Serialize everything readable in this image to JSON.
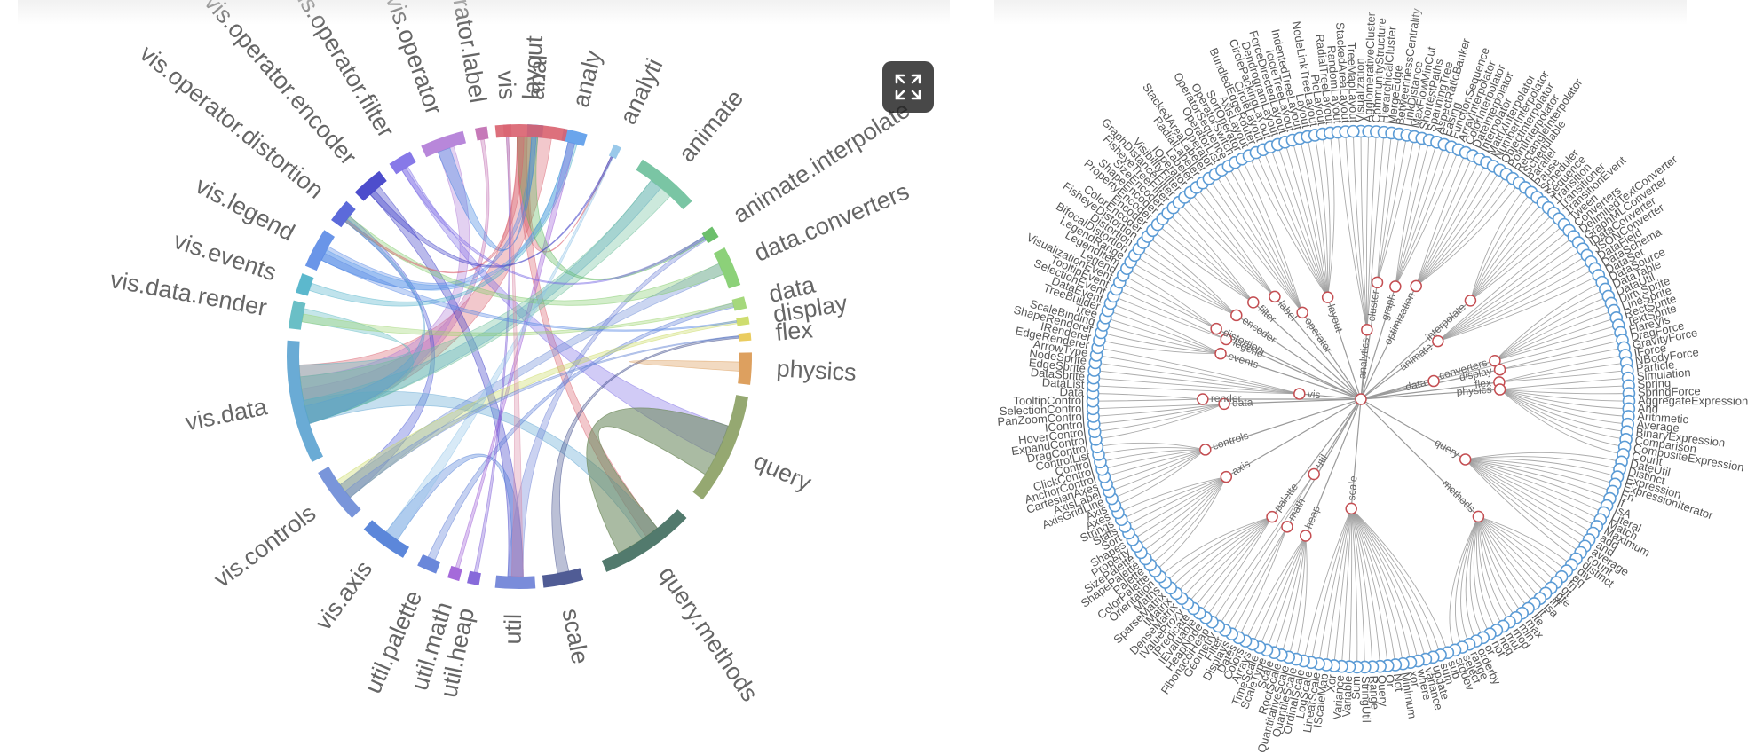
{
  "colors": {
    "label": "#666666",
    "tree_link": "#9a9a9a",
    "leaf_node": "#5b9bd5",
    "inner_node": "#c44e52",
    "button_bg": "#2b2b2b"
  },
  "expand_button": {
    "icon": "expand-icon"
  },
  "chord_diagram": {
    "groups": [
      {
        "label": "vis",
        "color": "#d98aa6"
      },
      {
        "label": "anal",
        "color": "#3b82e0"
      },
      {
        "label": "analy",
        "color": "#5a9bea"
      },
      {
        "label": "analyti",
        "color": "#8fc3e8"
      },
      {
        "label": "animate",
        "color": "#6cbf9a"
      },
      {
        "label": "animate.interpolate",
        "color": "#5cb85c"
      },
      {
        "label": "data.converters",
        "color": "#80cc6a"
      },
      {
        "label": "data",
        "color": "#9bd46e"
      },
      {
        "label": "display",
        "color": "#c9d95f"
      },
      {
        "label": "flex",
        "color": "#e8c64f"
      },
      {
        "label": "physics",
        "color": "#d9964e"
      },
      {
        "label": "query",
        "color": "#8a9e62"
      },
      {
        "label": "query.methods",
        "color": "#3f6b5d"
      },
      {
        "label": "scale",
        "color": "#3d4a8a"
      },
      {
        "label": "util",
        "color": "#6b7fd6"
      },
      {
        "label": "util.heap",
        "color": "#7a5ad6"
      },
      {
        "label": "util.math",
        "color": "#9b5ad6"
      },
      {
        "label": "util.palette",
        "color": "#5a7ad6"
      },
      {
        "label": "vis.axis",
        "color": "#4a7ad6"
      },
      {
        "label": "vis.controls",
        "color": "#6a8ad6"
      },
      {
        "label": "vis.data",
        "color": "#5aa2d0"
      },
      {
        "label": "vis.data.render",
        "color": "#5ab8c0"
      },
      {
        "label": "vis.events",
        "color": "#4ab0c8"
      },
      {
        "label": "vis.legend",
        "color": "#5a8ae6"
      },
      {
        "label": "vis.operator.distortion",
        "color": "#4a5ad6"
      },
      {
        "label": "vis.operator.encoder",
        "color": "#3a3ac6"
      },
      {
        "label": "vis.operator.filter",
        "color": "#7a6ae6"
      },
      {
        "label": "vis.operator",
        "color": "#b07ad6"
      },
      {
        "label": "vis.operator.label",
        "color": "#c06ab0"
      },
      {
        "label": "layout",
        "color": "#d9606e"
      }
    ]
  },
  "tree_diagram": {
    "leaves": [
      "Visualization",
      "AgglomerativeCluster",
      "CommunityStructure",
      "HierarchicalCluster",
      "MergeEdge",
      "BetweennessCentrality",
      "LinkDistance",
      "MaxFlowMinCut",
      "ShortestPaths",
      "SpanningTree",
      "AspectRatioBanker",
      "Easing",
      "FunctionSequence",
      "ArrayInterpolator",
      "ColorInterpolator",
      "DateInterpolator",
      "Interpolator",
      "MatrixInterpolator",
      "NumberInterpolator",
      "ObjectInterpolator",
      "PointInterpolator",
      "RectangleInterpolator",
      "ISchedulable",
      "Parallel",
      "Pause",
      "Scheduler",
      "Sequence",
      "Transition",
      "Transitioner",
      "TransitionEvent",
      "Tween",
      "Converters",
      "DelimitedTextConverter",
      "GraphMLConverter",
      "IDataConverter",
      "JSONConverter",
      "DataField",
      "DataSchema",
      "DataSet",
      "DataSource",
      "DataTable",
      "DataUtil",
      "DirtySprite",
      "LineSprite",
      "RectSprite",
      "TextSprite",
      "FlareVis",
      "DragForce",
      "GravityForce",
      "IForce",
      "NBodyForce",
      "Particle",
      "Simulation",
      "Spring",
      "SpringForce",
      "AggregateExpression",
      "And",
      "Arithmetic",
      "Average",
      "BinaryExpression",
      "Comparison",
      "CompositeExpression",
      "Count",
      "DateUtil",
      "Distinct",
      "Expression",
      "ExpressionIterator",
      "Fn",
      "If",
      "IsA",
      "Literal",
      "Match",
      "Maximum",
      "add",
      "and",
      "average",
      "count",
      "distinct",
      "div",
      "eq",
      "fn",
      "gt",
      "gte",
      "iff",
      "isa",
      "lt",
      "lte",
      "max",
      "min",
      "mod",
      "mul",
      "neq",
      "not",
      "or",
      "orderby",
      "range",
      "select",
      "stddev",
      "sub",
      "sum",
      "update",
      "variance",
      "where",
      "xor",
      "Minimum",
      "Not",
      "Or",
      "Query",
      "Range",
      "StringUtil",
      "Sum",
      "Variable",
      "Variance",
      "Xor",
      "IScaleMap",
      "LinearScale",
      "LogScale",
      "OrdinalScale",
      "QuantileScale",
      "QuantitativeScale",
      "RootScale",
      "Scale",
      "ScaleType",
      "TimeScale",
      "Arrays",
      "Colors",
      "Dates",
      "Displays",
      "Filter",
      "Geometry",
      "FibonacciHeap",
      "HeapNode",
      "IEvaluable",
      "IPredicate",
      "IValueProxy",
      "DenseMatrix",
      "IMatrix",
      "SparseMatrix",
      "Maths",
      "Orientation",
      "ColorPalette",
      "Palette",
      "ShapePalette",
      "SizePalette",
      "Property",
      "Shapes",
      "Sort",
      "Stats",
      "Strings",
      "Axes",
      "Axis",
      "AxisGridLine",
      "AxisLabel",
      "CartesianAxes",
      "AnchorControl",
      "ClickControl",
      "Control",
      "ControlList",
      "DragControl",
      "ExpandControl",
      "HoverControl",
      "IControl",
      "PanZoomControl",
      "SelectionControl",
      "TooltipControl",
      "Data",
      "DataList",
      "DataSprite",
      "EdgeSprite",
      "NodeSprite",
      "ArrowType",
      "EdgeRenderer",
      "IRenderer",
      "ShapeRenderer",
      "ScaleBinding",
      "Tree",
      "TreeBuilder",
      "DataEvent",
      "SelectionEvent",
      "TooltipEvent",
      "VisualizationEvent",
      "Legend",
      "LegendItem",
      "LegendRange",
      "BifocalDistortion",
      "Distortion",
      "FisheyeDistortion",
      "ColorEncoder",
      "Encoder",
      "PropertyEncoder",
      "ShapeEncoder",
      "SizeEncoder",
      "FisheyeTreeFilter",
      "GraphDistanceFilter",
      "VisibilityFilter",
      "IOperator",
      "Labeler",
      "RadialLabeler",
      "StackedAreaLabeler",
      "Operator",
      "OperatorList",
      "OperatorSequence",
      "OperatorSwitch",
      "SortOperator",
      "AxisLayout",
      "BundledEdgeRouter",
      "CircleLayout",
      "CirclePackingLayout",
      "DendrogramLayout",
      "ForceDirectedLayout",
      "IcicleTreeLayout",
      "IndentedTreeLayout",
      "Layout",
      "NodeLinkTreeLayout",
      "PieLayout",
      "RadialTreeLayout",
      "RandomLayout",
      "StackedAreaLayout",
      "TreeMapLayout"
    ],
    "inner": [
      {
        "label": "cluster",
        "angle": -82,
        "r": 0.44
      },
      {
        "label": "graph",
        "angle": -73,
        "r": 0.44
      },
      {
        "label": "optimization",
        "angle": -64,
        "r": 0.47
      },
      {
        "label": "analytics",
        "angle": -85,
        "r": 0.26
      },
      {
        "label": "interpolate",
        "angle": -42,
        "r": 0.55
      },
      {
        "label": "animate",
        "angle": -37,
        "r": 0.36
      },
      {
        "label": "converters",
        "angle": -16,
        "r": 0.52
      },
      {
        "label": "data",
        "angle": -14,
        "r": 0.28
      },
      {
        "label": "display",
        "angle": -12,
        "r": 0.53
      },
      {
        "label": "flex",
        "angle": -7,
        "r": 0.52
      },
      {
        "label": "physics",
        "angle": -4,
        "r": 0.52
      },
      {
        "label": "query",
        "angle": 30,
        "r": 0.45
      },
      {
        "label": "methods",
        "angle": 45,
        "r": 0.62
      },
      {
        "label": "scale",
        "angle": 95,
        "r": 0.41
      },
      {
        "label": "heap",
        "angle": 112,
        "r": 0.55
      },
      {
        "label": "math",
        "angle": 120,
        "r": 0.55
      },
      {
        "label": "palette",
        "angle": 127,
        "r": 0.55
      },
      {
        "label": "util",
        "angle": 122,
        "r": 0.33
      },
      {
        "label": "axis",
        "angle": 150,
        "r": 0.58
      },
      {
        "label": "controls",
        "angle": 162,
        "r": 0.61
      },
      {
        "label": "data",
        "angle": 178,
        "r": 0.51
      },
      {
        "label": "render",
        "angle": 180,
        "r": 0.59
      },
      {
        "label": "events",
        "angle": 198,
        "r": 0.55
      },
      {
        "label": "legend",
        "angle": 204,
        "r": 0.55
      },
      {
        "label": "distortion",
        "angle": 206,
        "r": 0.6
      },
      {
        "label": "encoder",
        "angle": 214,
        "r": 0.56
      },
      {
        "label": "filter",
        "angle": 222,
        "r": 0.54
      },
      {
        "label": "label",
        "angle": 230,
        "r": 0.5
      },
      {
        "label": "operator",
        "angle": 236,
        "r": 0.39
      },
      {
        "label": "vis",
        "angle": 185,
        "r": 0.23
      },
      {
        "label": "layout",
        "angle": 252,
        "r": 0.4
      }
    ]
  }
}
